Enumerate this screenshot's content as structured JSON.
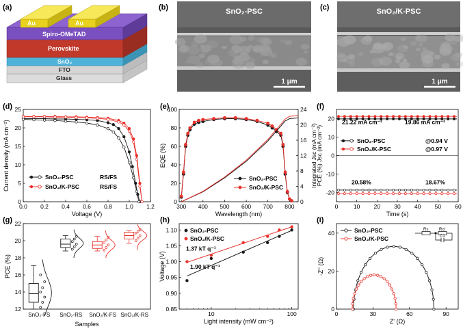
{
  "panels": {
    "a": {
      "label": "(a)",
      "layers": [
        "Au",
        "Au",
        "Spiro-OMeTAD",
        "Perovskite",
        "SnO₂",
        "FTO",
        "Glass"
      ]
    },
    "b": {
      "label": "(b)",
      "title": "SnO₂-PSC",
      "scale": "1 μm"
    },
    "c": {
      "label": "(c)",
      "title": "SnO₂/K-PSC",
      "scale": "1 μm"
    },
    "d": {
      "label": "(d)"
    },
    "e": {
      "label": "(e)"
    },
    "f": {
      "label": "(f)"
    },
    "g": {
      "label": "(g)"
    },
    "h": {
      "label": "(h)"
    },
    "i": {
      "label": "(i)"
    }
  },
  "colors": {
    "black": "#1a1a1a",
    "red": "#e8312a",
    "purple": "#7a4fbf",
    "perovskite": "#c0392b",
    "sno2": "#4fb3d9",
    "au": "#e8d21e",
    "fto": "#d8d8d8",
    "glass": "#ededed"
  },
  "chart_data": [
    {
      "id": "d",
      "type": "line",
      "xlabel": "Voltage (V)",
      "ylabel": "Current density (mA cm⁻²)",
      "xlim": [
        0.0,
        1.2
      ],
      "ylim": [
        0,
        25
      ],
      "xticks": [
        "0.0",
        "0.2",
        "0.4",
        "0.6",
        "0.8",
        "1.0",
        "1.2"
      ],
      "yticks": [
        "0",
        "5",
        "10",
        "15",
        "20",
        "25"
      ],
      "legend": [
        {
          "name": "SnO₂-PSC",
          "tag": "RS/FS",
          "color": "#1a1a1a"
        },
        {
          "name": "SnO₂/K-PSC",
          "tag": "RS/FS",
          "color": "#e8312a"
        }
      ],
      "series": [
        {
          "name": "SnO₂-PSC RS",
          "color": "#1a1a1a",
          "marker": "filled",
          "x": [
            0,
            0.1,
            0.2,
            0.3,
            0.4,
            0.5,
            0.6,
            0.7,
            0.8,
            0.85,
            0.9,
            0.95,
            1.0,
            1.03,
            1.06,
            1.08,
            1.1
          ],
          "y": [
            22.5,
            22.5,
            22.5,
            22.4,
            22.4,
            22.3,
            22.2,
            22.0,
            21.4,
            20.9,
            19.8,
            17.6,
            13.5,
            9.5,
            5.0,
            2.0,
            0
          ]
        },
        {
          "name": "SnO₂-PSC FS",
          "color": "#1a1a1a",
          "marker": "open",
          "x": [
            0,
            0.1,
            0.2,
            0.3,
            0.4,
            0.5,
            0.6,
            0.7,
            0.8,
            0.85,
            0.9,
            0.95,
            1.0,
            1.04,
            1.07,
            1.09
          ],
          "y": [
            22.3,
            22.2,
            22.1,
            22.0,
            21.8,
            21.6,
            21.3,
            20.8,
            19.8,
            18.9,
            17.3,
            14.8,
            10.6,
            6.5,
            2.8,
            0
          ]
        },
        {
          "name": "SnO₂/K-PSC RS",
          "color": "#e8312a",
          "marker": "filled",
          "x": [
            0,
            0.1,
            0.2,
            0.3,
            0.4,
            0.5,
            0.6,
            0.7,
            0.8,
            0.9,
            0.95,
            1.0,
            1.04,
            1.07,
            1.1,
            1.12
          ],
          "y": [
            23.1,
            23.1,
            23.1,
            23.1,
            23.0,
            23.0,
            22.9,
            22.8,
            22.6,
            22.0,
            21.3,
            19.8,
            17.0,
            12.5,
            5.0,
            0
          ]
        },
        {
          "name": "SnO₂/K-PSC FS",
          "color": "#e8312a",
          "marker": "open",
          "x": [
            0,
            0.1,
            0.2,
            0.3,
            0.4,
            0.5,
            0.6,
            0.7,
            0.8,
            0.9,
            0.95,
            1.0,
            1.04,
            1.07,
            1.1,
            1.12
          ],
          "y": [
            23.0,
            23.0,
            23.0,
            22.9,
            22.9,
            22.8,
            22.7,
            22.6,
            22.3,
            21.6,
            20.8,
            19.1,
            16.2,
            11.5,
            4.2,
            0
          ]
        }
      ]
    },
    {
      "id": "e",
      "type": "line",
      "xlabel": "Wavelength (nm)",
      "ylabel": "EQE (%)",
      "ylabel2": "Integrated Jsc (mA cm⁻²)",
      "xlim": [
        290,
        840
      ],
      "ylim": [
        0,
        100
      ],
      "ylim2": [
        0,
        24
      ],
      "xticks": [
        "300",
        "400",
        "500",
        "600",
        "700",
        "800"
      ],
      "yticks": [
        "0",
        "20",
        "40",
        "60",
        "80",
        "100"
      ],
      "yticks2": [
        "0",
        "4",
        "8",
        "12",
        "16",
        "20",
        "24"
      ],
      "legend": [
        {
          "name": "SnO₂-PSC",
          "color": "#1a1a1a"
        },
        {
          "name": "SnO₂/K-PSC",
          "color": "#e8312a"
        }
      ],
      "series": [
        {
          "name": "SnO₂-PSC EQE",
          "color": "#1a1a1a",
          "x": [
            300,
            310,
            320,
            330,
            340,
            360,
            380,
            400,
            450,
            500,
            550,
            600,
            650,
            700,
            720,
            740,
            760,
            770,
            780,
            790,
            800,
            810
          ],
          "y": [
            5,
            30,
            60,
            72,
            78,
            84,
            86,
            87,
            89,
            90,
            90,
            89,
            87,
            83,
            80,
            76,
            72,
            60,
            30,
            10,
            3,
            1
          ]
        },
        {
          "name": "SnO₂/K-PSC EQE",
          "color": "#e8312a",
          "x": [
            300,
            310,
            320,
            330,
            340,
            360,
            380,
            400,
            450,
            500,
            550,
            600,
            650,
            700,
            720,
            740,
            760,
            770,
            780,
            790,
            800,
            810
          ],
          "y": [
            6,
            32,
            62,
            74,
            80,
            86,
            88,
            89,
            90,
            91,
            91,
            90,
            88,
            85,
            82,
            78,
            74,
            62,
            32,
            11,
            3,
            1
          ]
        },
        {
          "name": "SnO₂-PSC Jsc",
          "color": "#1a1a1a",
          "x": [
            300,
            400,
            500,
            600,
            700,
            780,
            800,
            840
          ],
          "y2": [
            0,
            2.6,
            6.2,
            10.5,
            15.8,
            21.0,
            21.6,
            21.8
          ]
        },
        {
          "name": "SnO₂/K-PSC Jsc",
          "color": "#e8312a",
          "x": [
            300,
            400,
            500,
            600,
            700,
            780,
            800,
            840
          ],
          "y2": [
            0,
            2.7,
            6.4,
            10.8,
            16.2,
            21.5,
            22.2,
            22.4
          ]
        }
      ]
    },
    {
      "id": "f",
      "type": "line",
      "xlabel": "Time (s)",
      "ylabel": "PCE (%)      Jsc (mA cm⁻²)",
      "xlim": [
        0,
        60
      ],
      "ylim": [
        -25,
        25
      ],
      "xticks": [
        "0",
        "10",
        "20",
        "30",
        "40",
        "50",
        "60"
      ],
      "yticks": [
        "-20",
        "-10",
        "0",
        "10",
        "20"
      ],
      "annotations": [
        "21.22 mA cm⁻²",
        "19.86 mA cm⁻²",
        "20.58%",
        "18.67%",
        "@0.94 V",
        "@0.97 V"
      ],
      "legend": [
        {
          "name": "SnO₂-PSC",
          "color": "#1a1a1a"
        },
        {
          "name": "SnO₂/K-PSC",
          "color": "#e8312a"
        }
      ],
      "series": [
        {
          "name": "SnO₂-PSC Jsc",
          "color": "#1a1a1a",
          "y_const": 19.86
        },
        {
          "name": "SnO₂/K-PSC Jsc",
          "color": "#e8312a",
          "y_const": 21.22
        },
        {
          "name": "SnO₂-PSC PCE",
          "color": "#1a1a1a",
          "y_const": -18.67
        },
        {
          "name": "SnO₂/K-PSC PCE",
          "color": "#e8312a",
          "y_const": -20.58
        }
      ]
    },
    {
      "id": "g",
      "type": "box",
      "xlabel": "Samples",
      "ylabel": "PCE (%)",
      "ylim": [
        12,
        22
      ],
      "yticks": [
        "12",
        "14",
        "16",
        "18",
        "20",
        "22"
      ],
      "categories": [
        "SnO₂-FS",
        "SnO₂-RS",
        "SnO₂/K-FS",
        "SnO₂/K-RS"
      ],
      "series": [
        {
          "name": "SnO₂-FS",
          "color": "#1a1a1a",
          "q1": 12.8,
          "median": 13.8,
          "q3": 15.0,
          "min": 12.0,
          "max": 17.1,
          "points": [
            12.2,
            12.8,
            13.4,
            14.0,
            14.5,
            15.2,
            16.0
          ]
        },
        {
          "name": "SnO₂-RS",
          "color": "#1a1a1a",
          "q1": 19.2,
          "median": 19.6,
          "q3": 20.2,
          "min": 18.8,
          "max": 20.6,
          "points": [
            19.0,
            19.3,
            19.6,
            19.9,
            20.2,
            20.5
          ]
        },
        {
          "name": "SnO₂/K-FS",
          "color": "#e8312a",
          "q1": 19.1,
          "median": 19.5,
          "q3": 19.9,
          "min": 18.8,
          "max": 20.5,
          "points": [
            18.9,
            19.2,
            19.5,
            19.8,
            20.1,
            20.4
          ]
        },
        {
          "name": "SnO₂/K-RS",
          "color": "#e8312a",
          "q1": 20.2,
          "median": 20.6,
          "q3": 21.0,
          "min": 19.7,
          "max": 21.2,
          "points": [
            20.0,
            20.3,
            20.6,
            20.9,
            21.1,
            21.3
          ]
        }
      ]
    },
    {
      "id": "h",
      "type": "scatter",
      "log_x": true,
      "xlabel": "Light intensity (mW cm⁻²)",
      "ylabel": "Voltage (V)",
      "xlim": [
        4,
        120
      ],
      "ylim": [
        0.85,
        1.12
      ],
      "xticks": [
        "10",
        "100"
      ],
      "yticks": [
        "0.85",
        "0.90",
        "0.95",
        "1.00",
        "1.05",
        "1.10"
      ],
      "annotations": [
        "1.37 kT q⁻¹",
        "1.90 kT q⁻¹"
      ],
      "legend": [
        {
          "name": "SnO₂-PSC",
          "color": "#1a1a1a"
        },
        {
          "name": "SnO₂/K-PSC",
          "color": "#e8312a"
        }
      ],
      "series": [
        {
          "name": "SnO₂-PSC",
          "color": "#1a1a1a",
          "x": [
            5,
            10,
            25,
            50,
            70,
            100
          ],
          "y": [
            0.94,
            1.01,
            1.03,
            1.06,
            1.08,
            1.1
          ]
        },
        {
          "name": "SnO₂/K-PSC",
          "color": "#e8312a",
          "x": [
            5,
            10,
            25,
            50,
            70,
            100
          ],
          "y": [
            1.0,
            1.02,
            1.06,
            1.08,
            1.1,
            1.11
          ]
        }
      ]
    },
    {
      "id": "i",
      "type": "scatter",
      "xlabel": "Z' (Ω)",
      "ylabel": "-Z'' (Ω)",
      "xlim": [
        0,
        100
      ],
      "ylim": [
        0,
        45
      ],
      "xticks": [
        "0",
        "30",
        "60",
        "90"
      ],
      "yticks": [
        "0",
        "20",
        "40"
      ],
      "circuit_labels": [
        "Rs",
        "Rct",
        "C1"
      ],
      "legend": [
        {
          "name": "SnO₂-PSC",
          "color": "#1a1a1a"
        },
        {
          "name": "SnO₂/K-PSC",
          "color": "#e8312a"
        }
      ],
      "series": [
        {
          "name": "SnO₂-PSC",
          "color": "#1a1a1a",
          "center": 47,
          "radius": 33
        },
        {
          "name": "SnO₂/K-PSC",
          "color": "#e8312a",
          "center": 31,
          "radius": 18
        }
      ]
    }
  ]
}
